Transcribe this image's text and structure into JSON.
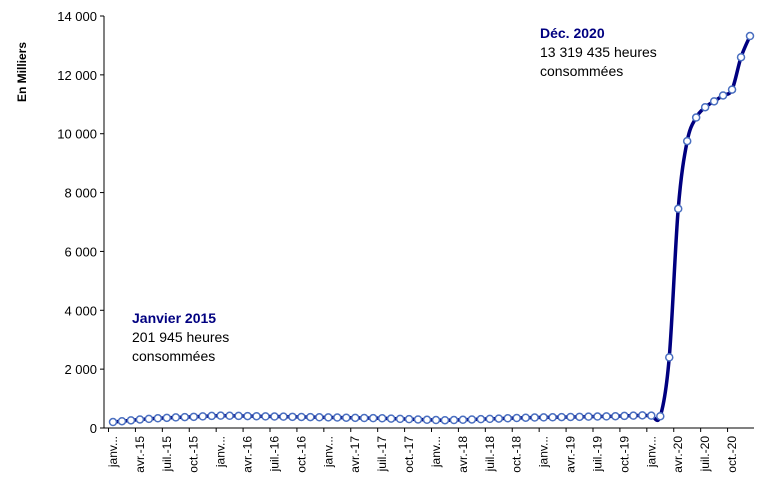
{
  "chart_data": {
    "type": "line",
    "y_label": "En Milliers",
    "categories": [
      "janv...",
      null,
      null,
      "avr.-15",
      null,
      null,
      "juil.-15",
      null,
      null,
      "oct.-15",
      null,
      null,
      "janv...",
      null,
      null,
      "avr.-16",
      null,
      null,
      "juil.-16",
      null,
      null,
      "oct.-16",
      null,
      null,
      "janv...",
      null,
      null,
      "avr.-17",
      null,
      null,
      "juil.-17",
      null,
      null,
      "oct.-17",
      null,
      null,
      "janv...",
      null,
      null,
      "avr.-18",
      null,
      null,
      "juil.-18",
      null,
      null,
      "oct.-18",
      null,
      null,
      "janv...",
      null,
      null,
      "avr.-19",
      null,
      null,
      "juil.-19",
      null,
      null,
      "oct.-19",
      null,
      null,
      "janv...",
      null,
      null,
      "avr.-20",
      null,
      null,
      "juil.-20",
      null,
      null,
      "oct.-20",
      null,
      null
    ],
    "series": [
      {
        "name": "Heures consommées",
        "color": "#000080",
        "marker_color": "#4a6fc0",
        "values": [
          201.945,
          230,
          260,
          290,
          310,
          330,
          345,
          360,
          370,
          380,
          395,
          410,
          420,
          415,
          410,
          405,
          400,
          395,
          390,
          385,
          380,
          375,
          370,
          365,
          360,
          355,
          350,
          345,
          340,
          335,
          330,
          320,
          310,
          300,
          290,
          280,
          270,
          265,
          270,
          280,
          290,
          300,
          310,
          320,
          330,
          340,
          350,
          355,
          360,
          365,
          370,
          375,
          380,
          385,
          390,
          395,
          400,
          410,
          420,
          430,
          420,
          400,
          2400,
          7450,
          9750,
          10550,
          10900,
          11100,
          11300,
          11500,
          12600,
          13319.435
        ]
      }
    ],
    "ylim": [
      0,
      14000
    ],
    "yticks": [
      0,
      {
        "value": 2000,
        "label": "2 000"
      },
      {
        "value": 4000,
        "label": "4 000"
      },
      {
        "value": 6000,
        "label": "6 000"
      },
      {
        "value": 8000,
        "label": "8 000"
      },
      {
        "value": 10000,
        "label": "10 000"
      },
      {
        "value": 12000,
        "label": "12 000"
      },
      {
        "value": 14000,
        "label": "14 000"
      }
    ],
    "annotations": [
      {
        "title": "Déc. 2020",
        "lines": [
          "13 319 435 heures",
          "consommées"
        ]
      },
      {
        "title": "Janvier 2015",
        "lines": [
          "201 945 heures",
          "consommées"
        ]
      }
    ]
  }
}
